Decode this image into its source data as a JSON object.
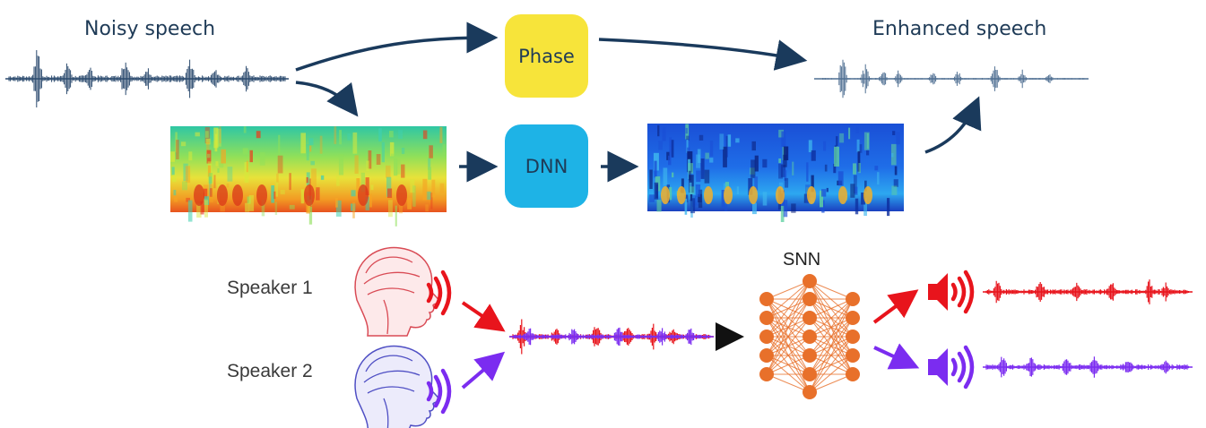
{
  "top": {
    "noisy_label": "Noisy speech",
    "enhanced_label": "Enhanced speech",
    "phase_label": "Phase",
    "dnn_label": "DNN"
  },
  "bottom": {
    "speaker1_label": "Speaker 1",
    "speaker2_label": "Speaker 2",
    "snn_label": "SNN"
  },
  "colors": {
    "phase_box": "#f7e43a",
    "dnn_box": "#1eb3e6",
    "arrow_dark": "#1a3a5c",
    "waveform_dark": "#2b4a6e",
    "speaker1": "#e8141c",
    "speaker2": "#7b2cf0",
    "network": "#e8702a"
  },
  "icons": [
    "brain-head-icon",
    "speaker-icon",
    "neural-network-icon",
    "spectrogram-image"
  ]
}
